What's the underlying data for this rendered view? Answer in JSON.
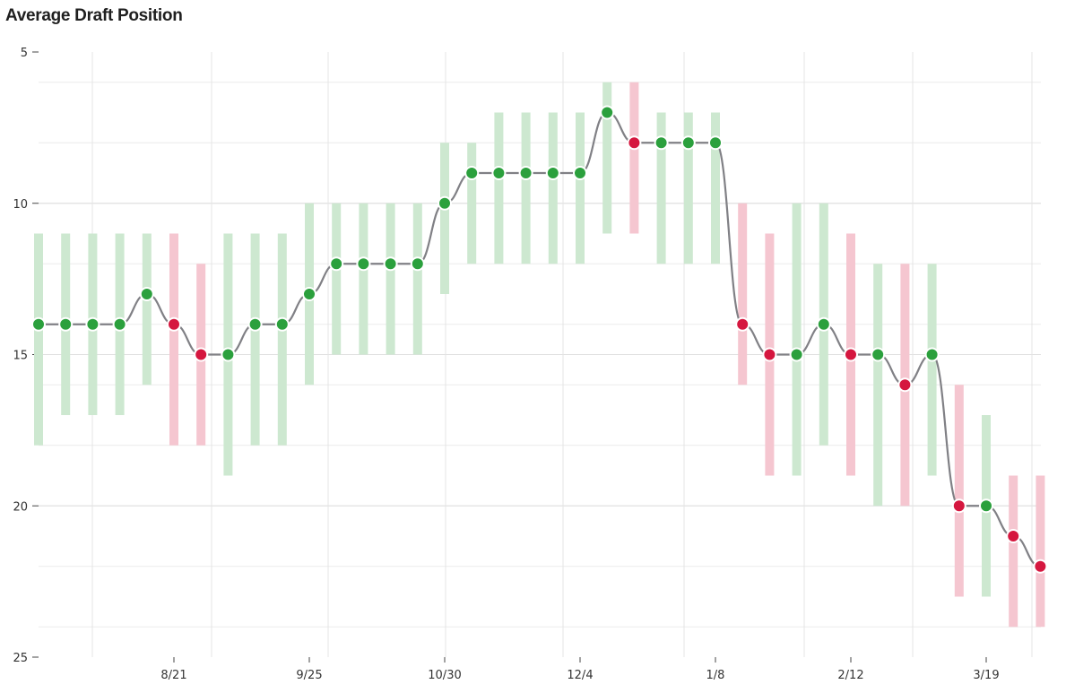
{
  "chart_data": {
    "type": "line",
    "title": "Average Draft Position",
    "xlabel": "",
    "ylabel": "",
    "ylim": [
      25,
      5
    ],
    "y_inverted": true,
    "yticks": [
      5,
      10,
      15,
      20,
      25
    ],
    "xtick_labels": [
      "8/21",
      "9/25",
      "10/30",
      "12/4",
      "1/8",
      "2/12",
      "3/19"
    ],
    "grid": true,
    "colors": {
      "up": "#2ba03d",
      "down": "#d5173f",
      "up_range": "#cde8d0",
      "down_range": "#f5c6d0",
      "line": "#808085"
    },
    "points": [
      {
        "adp": 14,
        "min": 11,
        "max": 18,
        "trend": "up"
      },
      {
        "adp": 14,
        "min": 11,
        "max": 17,
        "trend": "up"
      },
      {
        "adp": 14,
        "min": 11,
        "max": 17,
        "trend": "up"
      },
      {
        "adp": 14,
        "min": 11,
        "max": 17,
        "trend": "up"
      },
      {
        "adp": 13,
        "min": 11,
        "max": 16,
        "trend": "up"
      },
      {
        "adp": 14,
        "min": 11,
        "max": 18,
        "trend": "down"
      },
      {
        "adp": 15,
        "min": 12,
        "max": 18,
        "trend": "down"
      },
      {
        "adp": 15,
        "min": 11,
        "max": 19,
        "trend": "up"
      },
      {
        "adp": 14,
        "min": 11,
        "max": 18,
        "trend": "up"
      },
      {
        "adp": 14,
        "min": 11,
        "max": 18,
        "trend": "up"
      },
      {
        "adp": 13,
        "min": 10,
        "max": 16,
        "trend": "up"
      },
      {
        "adp": 12,
        "min": 10,
        "max": 15,
        "trend": "up"
      },
      {
        "adp": 12,
        "min": 10,
        "max": 15,
        "trend": "up"
      },
      {
        "adp": 12,
        "min": 10,
        "max": 15,
        "trend": "up"
      },
      {
        "adp": 12,
        "min": 10,
        "max": 15,
        "trend": "up"
      },
      {
        "adp": 10,
        "min": 8,
        "max": 13,
        "trend": "up"
      },
      {
        "adp": 9,
        "min": 8,
        "max": 12,
        "trend": "up"
      },
      {
        "adp": 9,
        "min": 7,
        "max": 12,
        "trend": "up"
      },
      {
        "adp": 9,
        "min": 7,
        "max": 12,
        "trend": "up"
      },
      {
        "adp": 9,
        "min": 7,
        "max": 12,
        "trend": "up"
      },
      {
        "adp": 9,
        "min": 7,
        "max": 12,
        "trend": "up"
      },
      {
        "adp": 7,
        "min": 6,
        "max": 11,
        "trend": "up"
      },
      {
        "adp": 8,
        "min": 6,
        "max": 11,
        "trend": "down"
      },
      {
        "adp": 8,
        "min": 7,
        "max": 12,
        "trend": "up"
      },
      {
        "adp": 8,
        "min": 7,
        "max": 12,
        "trend": "up"
      },
      {
        "adp": 8,
        "min": 7,
        "max": 12,
        "trend": "up"
      },
      {
        "adp": 14,
        "min": 10,
        "max": 16,
        "trend": "down"
      },
      {
        "adp": 15,
        "min": 11,
        "max": 19,
        "trend": "down"
      },
      {
        "adp": 15,
        "min": 10,
        "max": 19,
        "trend": "up"
      },
      {
        "adp": 14,
        "min": 10,
        "max": 18,
        "trend": "up"
      },
      {
        "adp": 15,
        "min": 11,
        "max": 19,
        "trend": "down"
      },
      {
        "adp": 15,
        "min": 12,
        "max": 20,
        "trend": "up"
      },
      {
        "adp": 16,
        "min": 12,
        "max": 20,
        "trend": "down"
      },
      {
        "adp": 15,
        "min": 12,
        "max": 19,
        "trend": "up"
      },
      {
        "adp": 20,
        "min": 16,
        "max": 23,
        "trend": "down"
      },
      {
        "adp": 20,
        "min": 17,
        "max": 23,
        "trend": "up"
      },
      {
        "adp": 21,
        "min": 19,
        "max": 24,
        "trend": "down"
      },
      {
        "adp": 22,
        "min": 19,
        "max": 24,
        "trend": "down"
      }
    ]
  }
}
